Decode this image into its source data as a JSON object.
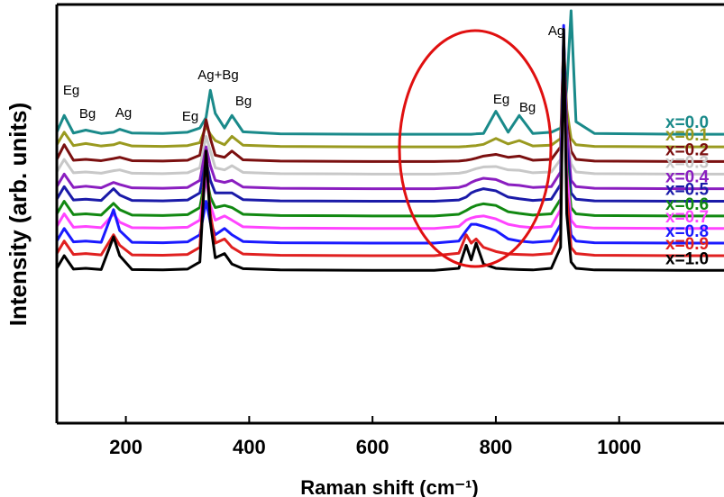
{
  "chart_data": {
    "type": "line",
    "y_label": "Intensity (arb. units)",
    "x_label": "Raman shift (cm⁻¹)",
    "xlim": [
      88,
      1170
    ],
    "xticks": [
      200,
      400,
      600,
      800,
      1000
    ],
    "ylim": [
      0,
      100
    ],
    "annotations": [
      "Eg",
      "Bg",
      "Ag",
      "Eg",
      "Ag+Bg",
      "Bg",
      "Eg",
      "Bg",
      "Ag"
    ],
    "x": [
      88,
      100,
      115,
      135,
      160,
      180,
      190,
      210,
      260,
      300,
      320,
      330,
      337,
      345,
      360,
      372,
      390,
      450,
      600,
      700,
      740,
      752,
      760,
      768,
      780,
      800,
      820,
      838,
      860,
      890,
      905,
      910,
      915,
      922,
      930,
      960,
      1100,
      1170
    ],
    "series": [
      {
        "name": "x=0.0",
        "color": "#1a8a8a",
        "values": [
          69.5,
          73.5,
          69.3,
          70,
          69.2,
          69.5,
          70.2,
          69.3,
          69.2,
          69.5,
          70.5,
          73,
          79.5,
          74,
          70.5,
          73.5,
          69.6,
          69.1,
          69,
          69,
          69,
          69,
          69,
          69.1,
          69.2,
          74.5,
          69.5,
          73.5,
          69.2,
          69.5,
          70.5,
          73,
          80,
          98.5,
          72,
          69.2,
          69,
          69
        ]
      },
      {
        "name": "x=0.1",
        "color": "#9a9a20",
        "values": [
          66.5,
          69.5,
          66.3,
          66.8,
          66.2,
          66.5,
          67,
          66.2,
          66.1,
          66.3,
          67,
          71,
          69,
          67.5,
          66.5,
          68.5,
          66.4,
          66.1,
          66,
          66,
          66,
          66.1,
          66.2,
          66.3,
          66.6,
          68,
          66.7,
          67.5,
          66.2,
          66.4,
          68,
          90,
          75,
          68,
          66.5,
          66.1,
          66,
          66
        ]
      },
      {
        "name": "x=0.2",
        "color": "#7b1010",
        "values": [
          63,
          66.5,
          62.8,
          63,
          62.7,
          63.2,
          63.5,
          62.7,
          62.6,
          62.8,
          64,
          72.5,
          68,
          64,
          63.5,
          65,
          62.9,
          62.6,
          62.5,
          62.5,
          62.6,
          62.8,
          63,
          63.3,
          63.8,
          64.2,
          63.5,
          63.8,
          62.8,
          63,
          66,
          92,
          72,
          65,
          63,
          62.6,
          62.5,
          62.5
        ]
      },
      {
        "name": "x=0.3",
        "color": "#c8c8c8",
        "values": [
          60,
          63,
          59.8,
          60,
          59.7,
          60.3,
          60.5,
          59.7,
          59.6,
          59.8,
          61,
          68.5,
          65,
          61,
          60.5,
          61.5,
          59.9,
          59.6,
          59.5,
          59.5,
          59.7,
          60,
          60.4,
          60.8,
          61.2,
          61.3,
          60.5,
          60.4,
          59.8,
          60,
          63,
          88,
          70,
          62,
          60,
          59.6,
          59.5,
          59.5
        ]
      },
      {
        "name": "x=0.4",
        "color": "#8a1ec0",
        "values": [
          56.5,
          59.5,
          56.3,
          56.6,
          56.2,
          57.5,
          57,
          56.2,
          56.1,
          56.3,
          58,
          66,
          61.5,
          58,
          57.5,
          58,
          56.4,
          56.1,
          56,
          56,
          56.3,
          56.8,
          57.5,
          58,
          58.5,
          58.2,
          57,
          56.8,
          56.3,
          56.5,
          60,
          90,
          70,
          58,
          56.5,
          56.1,
          56,
          56
        ]
      },
      {
        "name": "x=0.5",
        "color": "#1a1aa8",
        "values": [
          53.5,
          56.5,
          53.3,
          53.5,
          53.2,
          56,
          54.5,
          53.2,
          53.1,
          53.3,
          55,
          63,
          58,
          55,
          55,
          55,
          53.4,
          53.1,
          53,
          53,
          53.3,
          54,
          55,
          55.5,
          56,
          55.5,
          54,
          53.6,
          53.2,
          53.5,
          57,
          92,
          66,
          55,
          53.5,
          53.1,
          53,
          53
        ]
      },
      {
        "name": "x=0.6",
        "color": "#118811",
        "values": [
          50,
          53,
          49.8,
          50,
          49.7,
          52.5,
          51,
          49.7,
          49.6,
          49.8,
          51.5,
          59.5,
          54,
          51.5,
          52,
          51.5,
          49.9,
          49.6,
          49.5,
          49.5,
          49.9,
          50.8,
          51.5,
          52,
          52.4,
          52,
          50.5,
          50.1,
          49.7,
          50,
          53.5,
          90,
          62,
          51.5,
          50,
          49.6,
          49.5,
          49.5
        ]
      },
      {
        "name": "x=0.7",
        "color": "#ff44ff",
        "values": [
          47,
          50,
          46.8,
          47,
          46.7,
          50,
          48,
          46.7,
          46.6,
          46.8,
          48.5,
          58.5,
          52,
          48.5,
          49.5,
          48.5,
          46.9,
          46.6,
          46.5,
          46.5,
          47,
          48.5,
          49,
          49.3,
          49.5,
          48.8,
          47.5,
          47,
          46.7,
          47,
          51,
          91,
          60,
          48.5,
          47,
          46.6,
          46.5,
          46.5
        ]
      },
      {
        "name": "x=0.8",
        "color": "#1a1aff",
        "values": [
          43.5,
          46.5,
          43.3,
          43.5,
          43.2,
          51,
          46,
          43.2,
          43.1,
          43.3,
          45,
          53,
          48,
          45,
          46.5,
          45,
          43.4,
          43.1,
          43,
          43,
          43.5,
          46,
          47.5,
          47.5,
          47,
          46,
          44,
          43.5,
          43.2,
          43.5,
          47.5,
          95,
          55,
          45,
          43.5,
          43.1,
          43,
          43
        ]
      },
      {
        "name": "x=0.9",
        "color": "#e02020",
        "values": [
          40.5,
          43.5,
          40.3,
          40.5,
          40.2,
          45,
          42.5,
          40.2,
          40.1,
          40.3,
          42,
          65,
          50,
          43,
          44,
          42,
          40.4,
          40.1,
          40,
          40,
          40.6,
          45,
          43,
          44,
          42,
          41,
          40.4,
          40.3,
          40.2,
          40.5,
          45,
          92,
          55,
          42,
          40.5,
          40.1,
          40,
          40
        ]
      },
      {
        "name": "x=1.0",
        "color": "#000000",
        "values": [
          37,
          40,
          36.8,
          37,
          36.7,
          44.5,
          40,
          36.7,
          36.6,
          36.8,
          38.5,
          65,
          48,
          39.5,
          40.5,
          38,
          36.9,
          36.6,
          36.5,
          36.5,
          37,
          42.5,
          39,
          43,
          38,
          37,
          36.8,
          36.7,
          36.6,
          37,
          42,
          94,
          50,
          38.5,
          37,
          36.6,
          36.5,
          36.5
        ]
      }
    ]
  }
}
